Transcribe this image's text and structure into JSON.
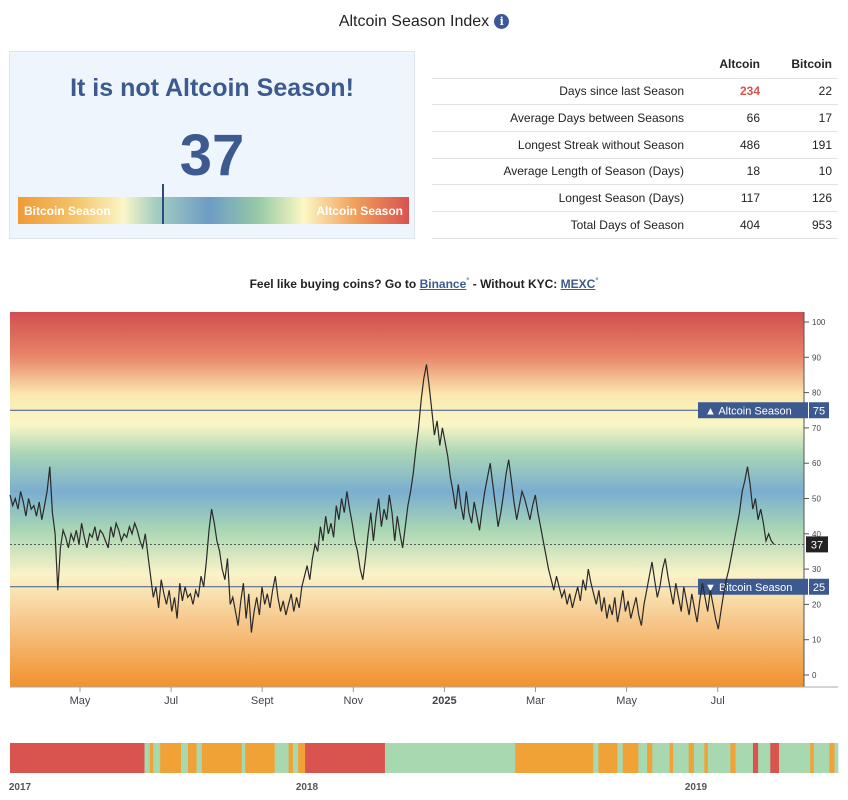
{
  "header": {
    "title": "Altcoin Season Index",
    "info_icon": "i"
  },
  "gauge": {
    "headline": "It is not Altcoin Season!",
    "value": "37",
    "value_num": 37,
    "left_label": "Bitcoin Season",
    "right_label": "Altcoin Season"
  },
  "stats": {
    "headers": [
      "",
      "Altcoin",
      "Bitcoin"
    ],
    "rows": [
      {
        "label": "Days since last Season",
        "altcoin": "234",
        "bitcoin": "22"
      },
      {
        "label": "Average Days between Seasons",
        "altcoin": "66",
        "bitcoin": "17"
      },
      {
        "label": "Longest Streak without Season",
        "altcoin": "486",
        "bitcoin": "191"
      },
      {
        "label": "Average Length of Season (Days)",
        "altcoin": "18",
        "bitcoin": "10"
      },
      {
        "label": "Longest Season (Days)",
        "altcoin": "117",
        "bitcoin": "126"
      },
      {
        "label": "Total Days of Season",
        "altcoin": "404",
        "bitcoin": "953"
      }
    ],
    "highlight_color": "#d9534f"
  },
  "promo": {
    "prefix": "Feel like buying coins? Go to",
    "link1": "Binance",
    "middle": "- Without KYC:",
    "link2": "MEXC",
    "sup": "*"
  },
  "chart_data": [
    {
      "type": "line",
      "title": "",
      "x_tick_labels": [
        "May",
        "Jul",
        "Sept",
        "Nov",
        "2025",
        "Mar",
        "May",
        "Jul"
      ],
      "y_ticks": [
        0,
        10,
        20,
        30,
        40,
        50,
        60,
        70,
        80,
        90,
        100
      ],
      "ylim": [
        0,
        100
      ],
      "grid": false,
      "current_value": 37,
      "current_label": "37",
      "thresholds": [
        {
          "name": "Altcoin Season",
          "value": 75,
          "label": "75"
        },
        {
          "name": "Bitcoin Season",
          "value": 25,
          "label": "25"
        }
      ],
      "series": [
        {
          "values": [
            51,
            48,
            50,
            47,
            52,
            49,
            45,
            50,
            47,
            48,
            45,
            49,
            44,
            48,
            52,
            59,
            46,
            40,
            24,
            36,
            41,
            39,
            36,
            40,
            38,
            41,
            37,
            43,
            39,
            36,
            40,
            39,
            42,
            38,
            41,
            40,
            38,
            36,
            42,
            39,
            43,
            41,
            38,
            40,
            39,
            42,
            40,
            43,
            41,
            38,
            36,
            40,
            34,
            28,
            22,
            25,
            19,
            27,
            23,
            20,
            24,
            18,
            22,
            16,
            26,
            21,
            25,
            22,
            23,
            20,
            24,
            22,
            28,
            25,
            32,
            41,
            47,
            43,
            38,
            35,
            30,
            27,
            33,
            20,
            22,
            18,
            14,
            21,
            26,
            16,
            23,
            12,
            18,
            22,
            17,
            25,
            20,
            23,
            19,
            24,
            28,
            22,
            18,
            21,
            17,
            20,
            23,
            18,
            22,
            19,
            25,
            28,
            31,
            27,
            33,
            37,
            35,
            42,
            38,
            45,
            40,
            43,
            39,
            48,
            44,
            50,
            46,
            52,
            47,
            43,
            38,
            35,
            30,
            27,
            33,
            40,
            46,
            38,
            45,
            50,
            42,
            47,
            44,
            51,
            46,
            38,
            45,
            40,
            36,
            42,
            48,
            52,
            57,
            64,
            70,
            78,
            84,
            88,
            82,
            75,
            68,
            72,
            65,
            70,
            66,
            62,
            56,
            52,
            47,
            54,
            48,
            44,
            52,
            46,
            43,
            49,
            45,
            41,
            47,
            52,
            56,
            60,
            54,
            48,
            42,
            46,
            51,
            57,
            61,
            55,
            49,
            44,
            48,
            52,
            50,
            47,
            44,
            48,
            51,
            46,
            42,
            38,
            34,
            30,
            27,
            24,
            28,
            25,
            22,
            24,
            20,
            23,
            19,
            22,
            25,
            21,
            27,
            24,
            30,
            26,
            23,
            20,
            24,
            18,
            22,
            16,
            20,
            17,
            22,
            15,
            19,
            24,
            18,
            21,
            16,
            19,
            22,
            17,
            14,
            20,
            24,
            28,
            32,
            27,
            22,
            25,
            30,
            33,
            28,
            24,
            20,
            26,
            22,
            18,
            25,
            21,
            17,
            23,
            19,
            15,
            21,
            26,
            22,
            18,
            24,
            20,
            16,
            13,
            18,
            23,
            27,
            30,
            34,
            38,
            42,
            46,
            52,
            55,
            59,
            54,
            47,
            50,
            44,
            47,
            43,
            38,
            40,
            38,
            37
          ]
        }
      ]
    },
    {
      "type": "bar",
      "title": "",
      "x_tick_labels": [
        "2017",
        "2018",
        "2019"
      ],
      "legend": [],
      "season_colors": {
        "altcoin": "#d9534f",
        "neutral": "#a8d8b0",
        "bitcoin": "#f0a236"
      },
      "segments": [
        {
          "state": "altcoin",
          "len": 0.155
        },
        {
          "state": "neutral",
          "len": 0.006
        },
        {
          "state": "bitcoin",
          "len": 0.004
        },
        {
          "state": "neutral",
          "len": 0.008
        },
        {
          "state": "bitcoin",
          "len": 0.024
        },
        {
          "state": "neutral",
          "len": 0.008
        },
        {
          "state": "bitcoin",
          "len": 0.01
        },
        {
          "state": "neutral",
          "len": 0.006
        },
        {
          "state": "bitcoin",
          "len": 0.046
        },
        {
          "state": "neutral",
          "len": 0.004
        },
        {
          "state": "bitcoin",
          "len": 0.034
        },
        {
          "state": "neutral",
          "len": 0.016
        },
        {
          "state": "bitcoin",
          "len": 0.005
        },
        {
          "state": "neutral",
          "len": 0.006
        },
        {
          "state": "bitcoin",
          "len": 0.008
        },
        {
          "state": "altcoin",
          "len": 0.092
        },
        {
          "state": "neutral",
          "len": 0.15
        },
        {
          "state": "bitcoin",
          "len": 0.09
        },
        {
          "state": "neutral",
          "len": 0.006
        },
        {
          "state": "bitcoin",
          "len": 0.022
        },
        {
          "state": "neutral",
          "len": 0.006
        },
        {
          "state": "bitcoin",
          "len": 0.018
        },
        {
          "state": "neutral",
          "len": 0.01
        },
        {
          "state": "bitcoin",
          "len": 0.006
        },
        {
          "state": "neutral",
          "len": 0.02
        },
        {
          "state": "bitcoin",
          "len": 0.004
        },
        {
          "state": "neutral",
          "len": 0.018
        },
        {
          "state": "bitcoin",
          "len": 0.006
        },
        {
          "state": "neutral",
          "len": 0.012
        },
        {
          "state": "bitcoin",
          "len": 0.004
        },
        {
          "state": "neutral",
          "len": 0.026
        },
        {
          "state": "bitcoin",
          "len": 0.006
        },
        {
          "state": "neutral",
          "len": 0.02
        },
        {
          "state": "altcoin",
          "len": 0.006
        },
        {
          "state": "neutral",
          "len": 0.014
        },
        {
          "state": "altcoin",
          "len": 0.01
        },
        {
          "state": "neutral",
          "len": 0.036
        },
        {
          "state": "bitcoin",
          "len": 0.004
        },
        {
          "state": "neutral",
          "len": 0.018
        },
        {
          "state": "bitcoin",
          "len": 0.006
        },
        {
          "state": "neutral",
          "len": 0.004
        }
      ]
    }
  ]
}
